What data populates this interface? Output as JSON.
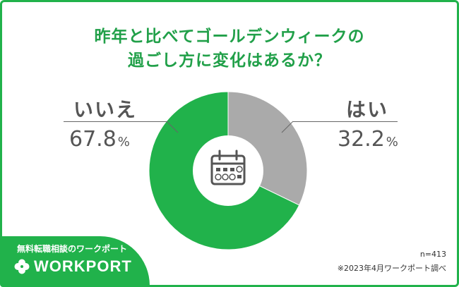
{
  "title": {
    "line1": "昨年と比べてゴールデンウィークの",
    "line2": "過ごし方に変化はあるか？"
  },
  "chart_data": {
    "type": "pie",
    "style": "donut",
    "categories": [
      "はい",
      "いいえ"
    ],
    "values": [
      32.2,
      67.8
    ],
    "unit": "%",
    "colors": [
      "#aaaaaa",
      "#21b24b"
    ],
    "center_icon": "calendar-icon"
  },
  "labels": {
    "yes": {
      "text": "はい",
      "value": "32.2",
      "unit": "%"
    },
    "no": {
      "text": "いいえ",
      "value": "67.8",
      "unit": "%"
    }
  },
  "branding": {
    "subtitle": "無料転職相談のワークポート",
    "logo_text": "WORKPORT",
    "logo_icon": "clover-icon",
    "color": "#21b24b"
  },
  "notes": {
    "sample": "n=413",
    "source": "※2023年4月ワークポート調べ"
  }
}
